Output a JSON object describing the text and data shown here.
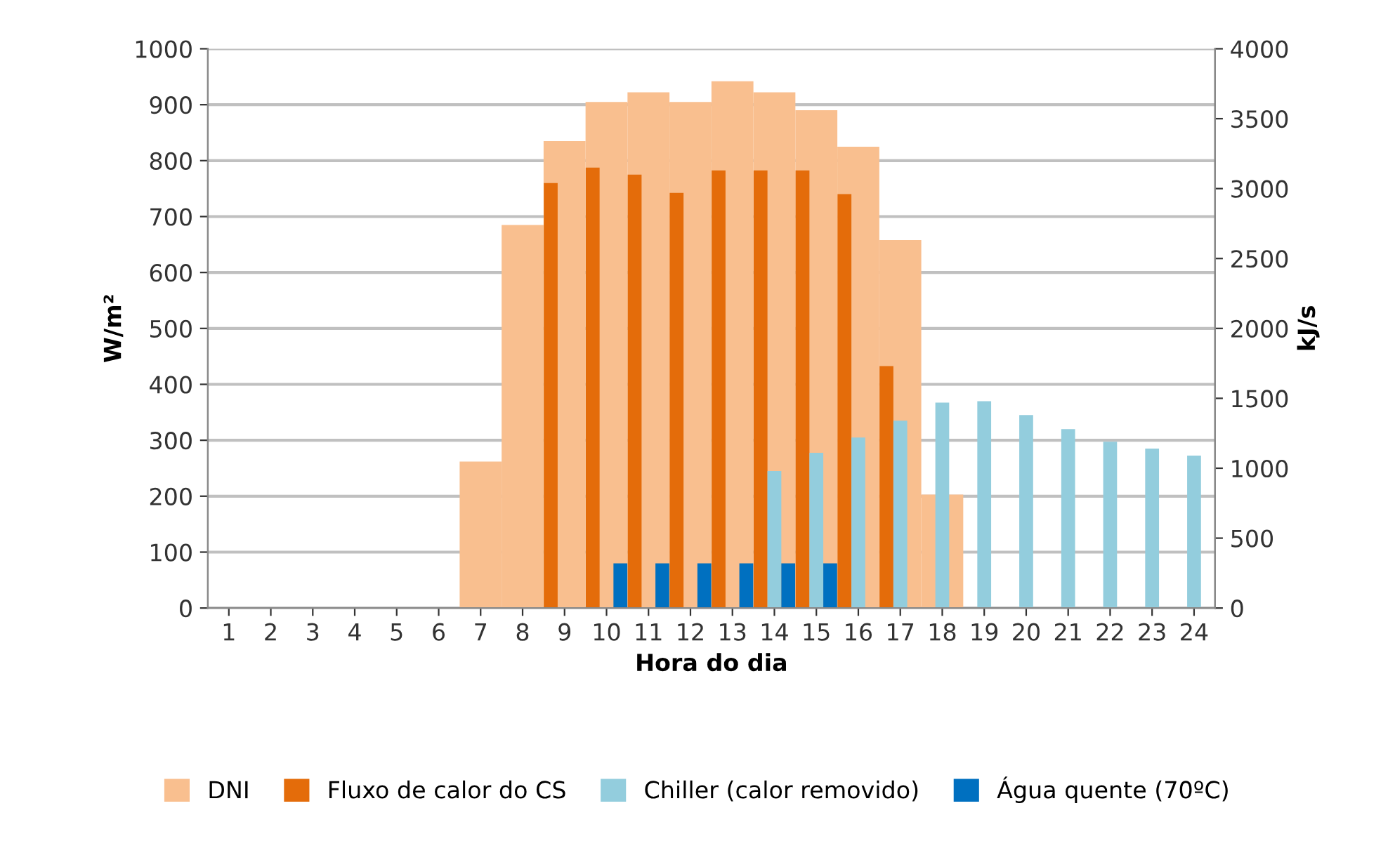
{
  "chart_data": {
    "type": "bar",
    "xlabel": "Hora do dia",
    "ylabel": "W/m²",
    "y2label": "kJ/s",
    "categories": [
      "1",
      "2",
      "3",
      "4",
      "5",
      "6",
      "7",
      "8",
      "9",
      "10",
      "11",
      "12",
      "13",
      "14",
      "15",
      "16",
      "17",
      "18",
      "19",
      "20",
      "21",
      "22",
      "23",
      "24"
    ],
    "series": [
      {
        "name": "DNI",
        "color": "#f9bf8f",
        "values": [
          0,
          0,
          0,
          0,
          0,
          0,
          262,
          685,
          835,
          905,
          922,
          905,
          942,
          922,
          890,
          825,
          658,
          203,
          0,
          0,
          0,
          0,
          0,
          0
        ]
      },
      {
        "name": "Fluxo de calor do CS",
        "color": "#e46c0a",
        "axis": "y2",
        "values": [
          null,
          null,
          null,
          null,
          null,
          null,
          null,
          null,
          3040,
          3150,
          3100,
          2970,
          3130,
          3130,
          3130,
          2960,
          1730,
          null,
          null,
          null,
          null,
          null,
          null,
          null
        ]
      },
      {
        "name": "Chiller (calor removido)",
        "color": "#93cddd",
        "axis": "y2",
        "values": [
          null,
          null,
          null,
          null,
          null,
          null,
          null,
          null,
          null,
          null,
          null,
          null,
          null,
          980,
          1110,
          1220,
          1340,
          1470,
          1480,
          1380,
          1280,
          1190,
          1140,
          1090
        ]
      },
      {
        "name": "Água quente (70ºC)",
        "color": "#0070c0",
        "axis": "y2",
        "values": [
          null,
          null,
          null,
          null,
          null,
          null,
          null,
          null,
          null,
          320,
          320,
          320,
          320,
          320,
          320,
          null,
          null,
          null,
          null,
          null,
          null,
          null,
          null,
          null
        ]
      }
    ],
    "ylim": [
      0,
      1000
    ],
    "yticks": [
      0,
      100,
      200,
      300,
      400,
      500,
      600,
      700,
      800,
      900,
      1000
    ],
    "y2lim": [
      0,
      4000
    ],
    "y2ticks": [
      0,
      500,
      1000,
      1500,
      2000,
      2500,
      3000,
      3500,
      4000
    ],
    "grid": "y",
    "legend": "bottom"
  }
}
